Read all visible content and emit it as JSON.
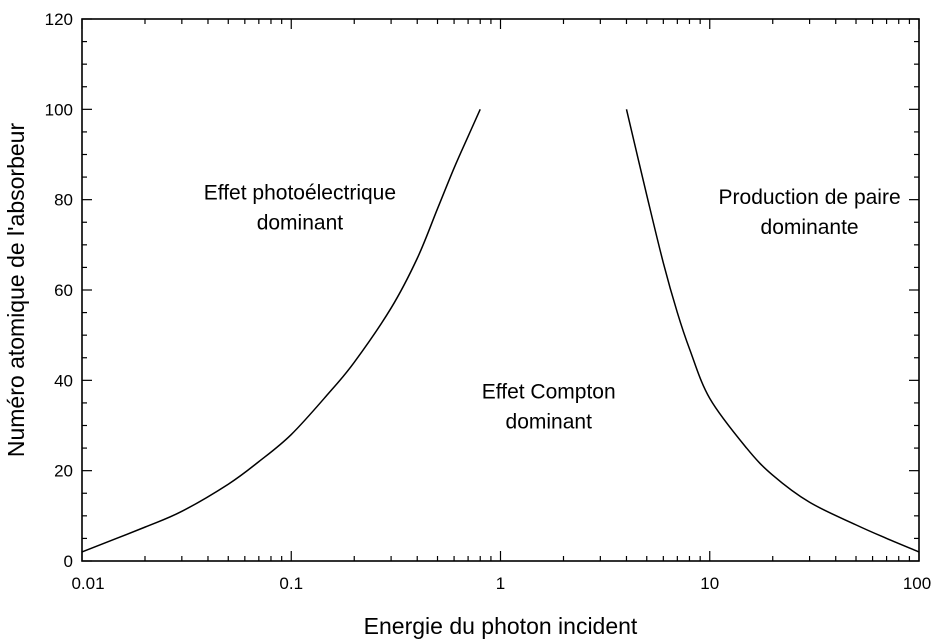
{
  "chart_data": {
    "type": "line",
    "xlabel": "Energie du photon incident",
    "ylabel": "Numéro atomique de l'absorbeur",
    "xscale": "log",
    "xlim": [
      0.01,
      100
    ],
    "ylim": [
      0,
      120
    ],
    "x_ticks": [
      {
        "value": 0.01,
        "label": "0.01"
      },
      {
        "value": 0.1,
        "label": "0.1"
      },
      {
        "value": 1,
        "label": "1"
      },
      {
        "value": 10,
        "label": "10"
      },
      {
        "value": 100,
        "label": "100"
      }
    ],
    "y_ticks": [
      {
        "value": 0,
        "label": "0"
      },
      {
        "value": 20,
        "label": "20"
      },
      {
        "value": 40,
        "label": "40"
      },
      {
        "value": 60,
        "label": "60"
      },
      {
        "value": 80,
        "label": "80"
      },
      {
        "value": 100,
        "label": "100"
      },
      {
        "value": 120,
        "label": "120"
      }
    ],
    "y_minor_step": 5,
    "grid": false,
    "series": [
      {
        "x": [
          0.01,
          0.02,
          0.03,
          0.05,
          0.07,
          0.1,
          0.15,
          0.2,
          0.3,
          0.4,
          0.5,
          0.6,
          0.7,
          0.8
        ],
        "y": [
          2,
          7.5,
          11,
          17,
          22,
          28,
          37,
          44,
          56,
          67,
          78,
          87,
          94,
          100
        ]
      },
      {
        "x": [
          4,
          5,
          6,
          7,
          8,
          10,
          15,
          20,
          30,
          50,
          70,
          100
        ],
        "y": [
          100,
          81,
          66,
          55,
          47,
          36,
          25,
          19,
          13,
          8,
          5,
          2
        ]
      }
    ],
    "annotations": [
      {
        "lines": [
          "Effet photoélectrique",
          "dominant"
        ],
        "x": 0.11,
        "y": 80
      },
      {
        "lines": [
          "Effet Compton",
          "dominant"
        ],
        "x": 1.7,
        "y": 36
      },
      {
        "lines": [
          "Production de paire",
          "dominante"
        ],
        "x": 30,
        "y": 79
      }
    ]
  }
}
